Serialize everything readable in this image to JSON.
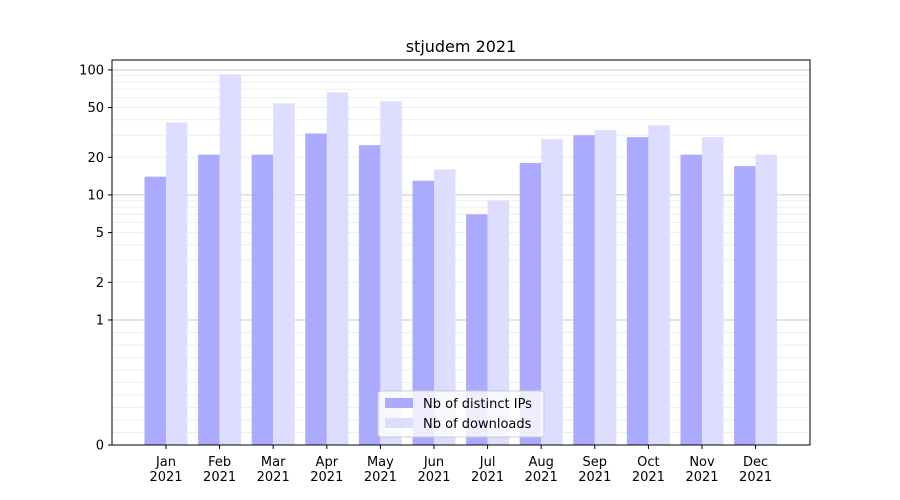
{
  "chart_data": {
    "type": "bar",
    "title": "stjudem 2021",
    "xlabel": "",
    "ylabel": "",
    "categories": [
      "Jan\n2021",
      "Feb\n2021",
      "Mar\n2021",
      "Apr\n2021",
      "May\n2021",
      "Jun\n2021",
      "Jul\n2021",
      "Aug\n2021",
      "Sep\n2021",
      "Oct\n2021",
      "Nov\n2021",
      "Dec\n2021"
    ],
    "series": [
      {
        "name": "Nb of distinct IPs",
        "color": "#aaaaff",
        "values": [
          14,
          21,
          21,
          31,
          25,
          13,
          7,
          18,
          30,
          29,
          21,
          17
        ]
      },
      {
        "name": "Nb of downloads",
        "color": "#ddddff",
        "values": [
          38,
          92,
          54,
          66,
          56,
          16,
          9,
          28,
          33,
          36,
          29,
          21
        ]
      }
    ],
    "y_scale": "symlog",
    "ylim": [
      0,
      120
    ],
    "yticks": [
      0,
      1,
      2,
      5,
      10,
      20,
      50,
      100
    ],
    "ytick_labels": [
      "0",
      "1",
      "2",
      "5",
      "10",
      "20",
      "50",
      "100"
    ],
    "grid": "horizontal",
    "legend_position": "bottom-center"
  }
}
